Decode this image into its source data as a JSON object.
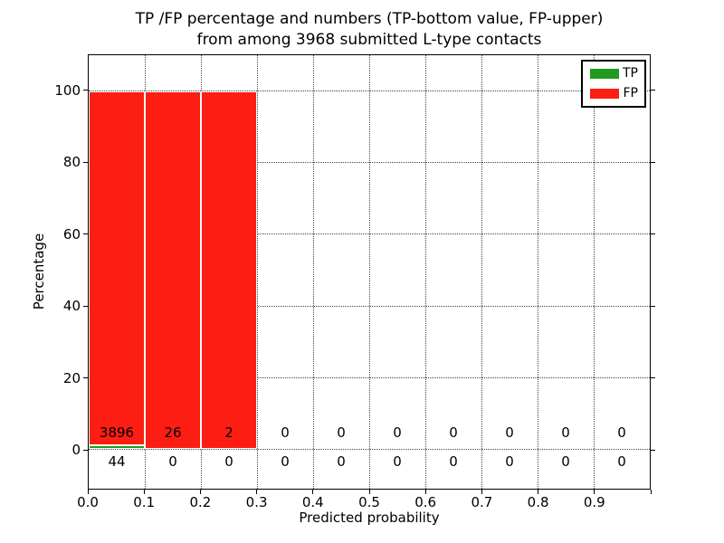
{
  "figure": {
    "title_line1": "TP /FP percentage and numbers (TP-bottom value, FP-upper)",
    "title_line2": "from among 3968 submitted L-type contacts",
    "background": "#ffffff"
  },
  "chart_data": {
    "type": "bar",
    "stacked": true,
    "title": "TP /FP percentage and numbers (TP-bottom value, FP-upper) from among 3968 submitted L-type contacts",
    "xlabel": "Predicted probability",
    "ylabel": "Percentage",
    "xlim": [
      0.0,
      1.0
    ],
    "ylim": [
      -11,
      110
    ],
    "xticks": [
      0.0,
      0.1,
      0.2,
      0.3,
      0.4,
      0.5,
      0.6,
      0.7,
      0.8,
      0.9
    ],
    "xtick_labels": [
      "0.0",
      "0.1",
      "0.2",
      "0.3",
      "0.4",
      "0.5",
      "0.6",
      "0.7",
      "0.8",
      "0.9"
    ],
    "yticks": [
      0,
      20,
      40,
      60,
      80,
      100
    ],
    "ytick_labels": [
      "0",
      "20",
      "40",
      "60",
      "80",
      "100"
    ],
    "grid": true,
    "grid_style": "dotted",
    "bin_edges": [
      0.0,
      0.1,
      0.2,
      0.3,
      0.4,
      0.5,
      0.6,
      0.7,
      0.8,
      0.9,
      1.0
    ],
    "total_submitted": 3968,
    "legend": {
      "position": "upper right",
      "entries": [
        {
          "label": "TP",
          "color": "#1f9b1f"
        },
        {
          "label": "FP",
          "color": "#fc1d13"
        }
      ]
    },
    "series": [
      {
        "name": "TP",
        "color": "#1f9b1f",
        "counts": [
          44,
          0,
          0,
          0,
          0,
          0,
          0,
          0,
          0,
          0
        ],
        "pct": [
          1.12,
          0,
          0,
          0,
          0,
          0,
          0,
          0,
          0,
          0
        ]
      },
      {
        "name": "FP",
        "color": "#fc1d13",
        "counts": [
          3896,
          26,
          2,
          0,
          0,
          0,
          0,
          0,
          0,
          0
        ],
        "pct": [
          98.88,
          100,
          100,
          0,
          0,
          0,
          0,
          0,
          0,
          0
        ]
      }
    ],
    "annotation_rows": {
      "fp_row_y_pct": 4.6,
      "tp_row_y_pct": -3.4
    }
  }
}
